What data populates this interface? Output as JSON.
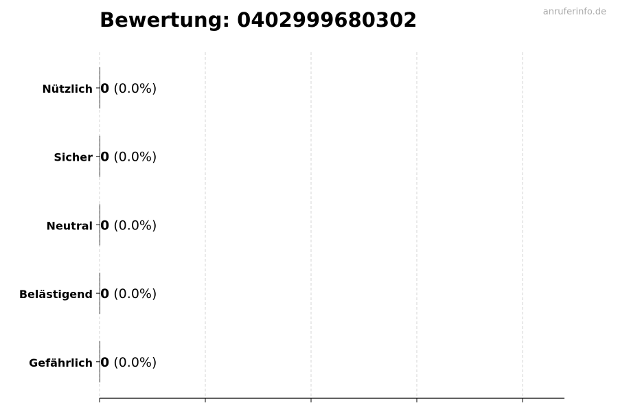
{
  "chart_data": {
    "type": "bar",
    "orientation": "horizontal",
    "title": "Bewertung: 0402999680302",
    "categories": [
      "Nützlich",
      "Sicher",
      "Neutral",
      "Belästigend",
      "Gefährlich"
    ],
    "values": [
      0,
      0,
      0,
      0,
      0
    ],
    "percentages": [
      "0.0%",
      "0.0%",
      "0.0%",
      "0.0%",
      "0.0%"
    ],
    "data_labels": [
      "0",
      "0",
      "0",
      "0",
      "0"
    ],
    "xlabel": "",
    "ylabel": "",
    "x_tick_labels_shown": false,
    "grid": "vertical dashed",
    "colors": {
      "bar": "#000000",
      "grid": "#cccccc",
      "text": "#000000"
    }
  },
  "watermark": "anruferinfo.de"
}
